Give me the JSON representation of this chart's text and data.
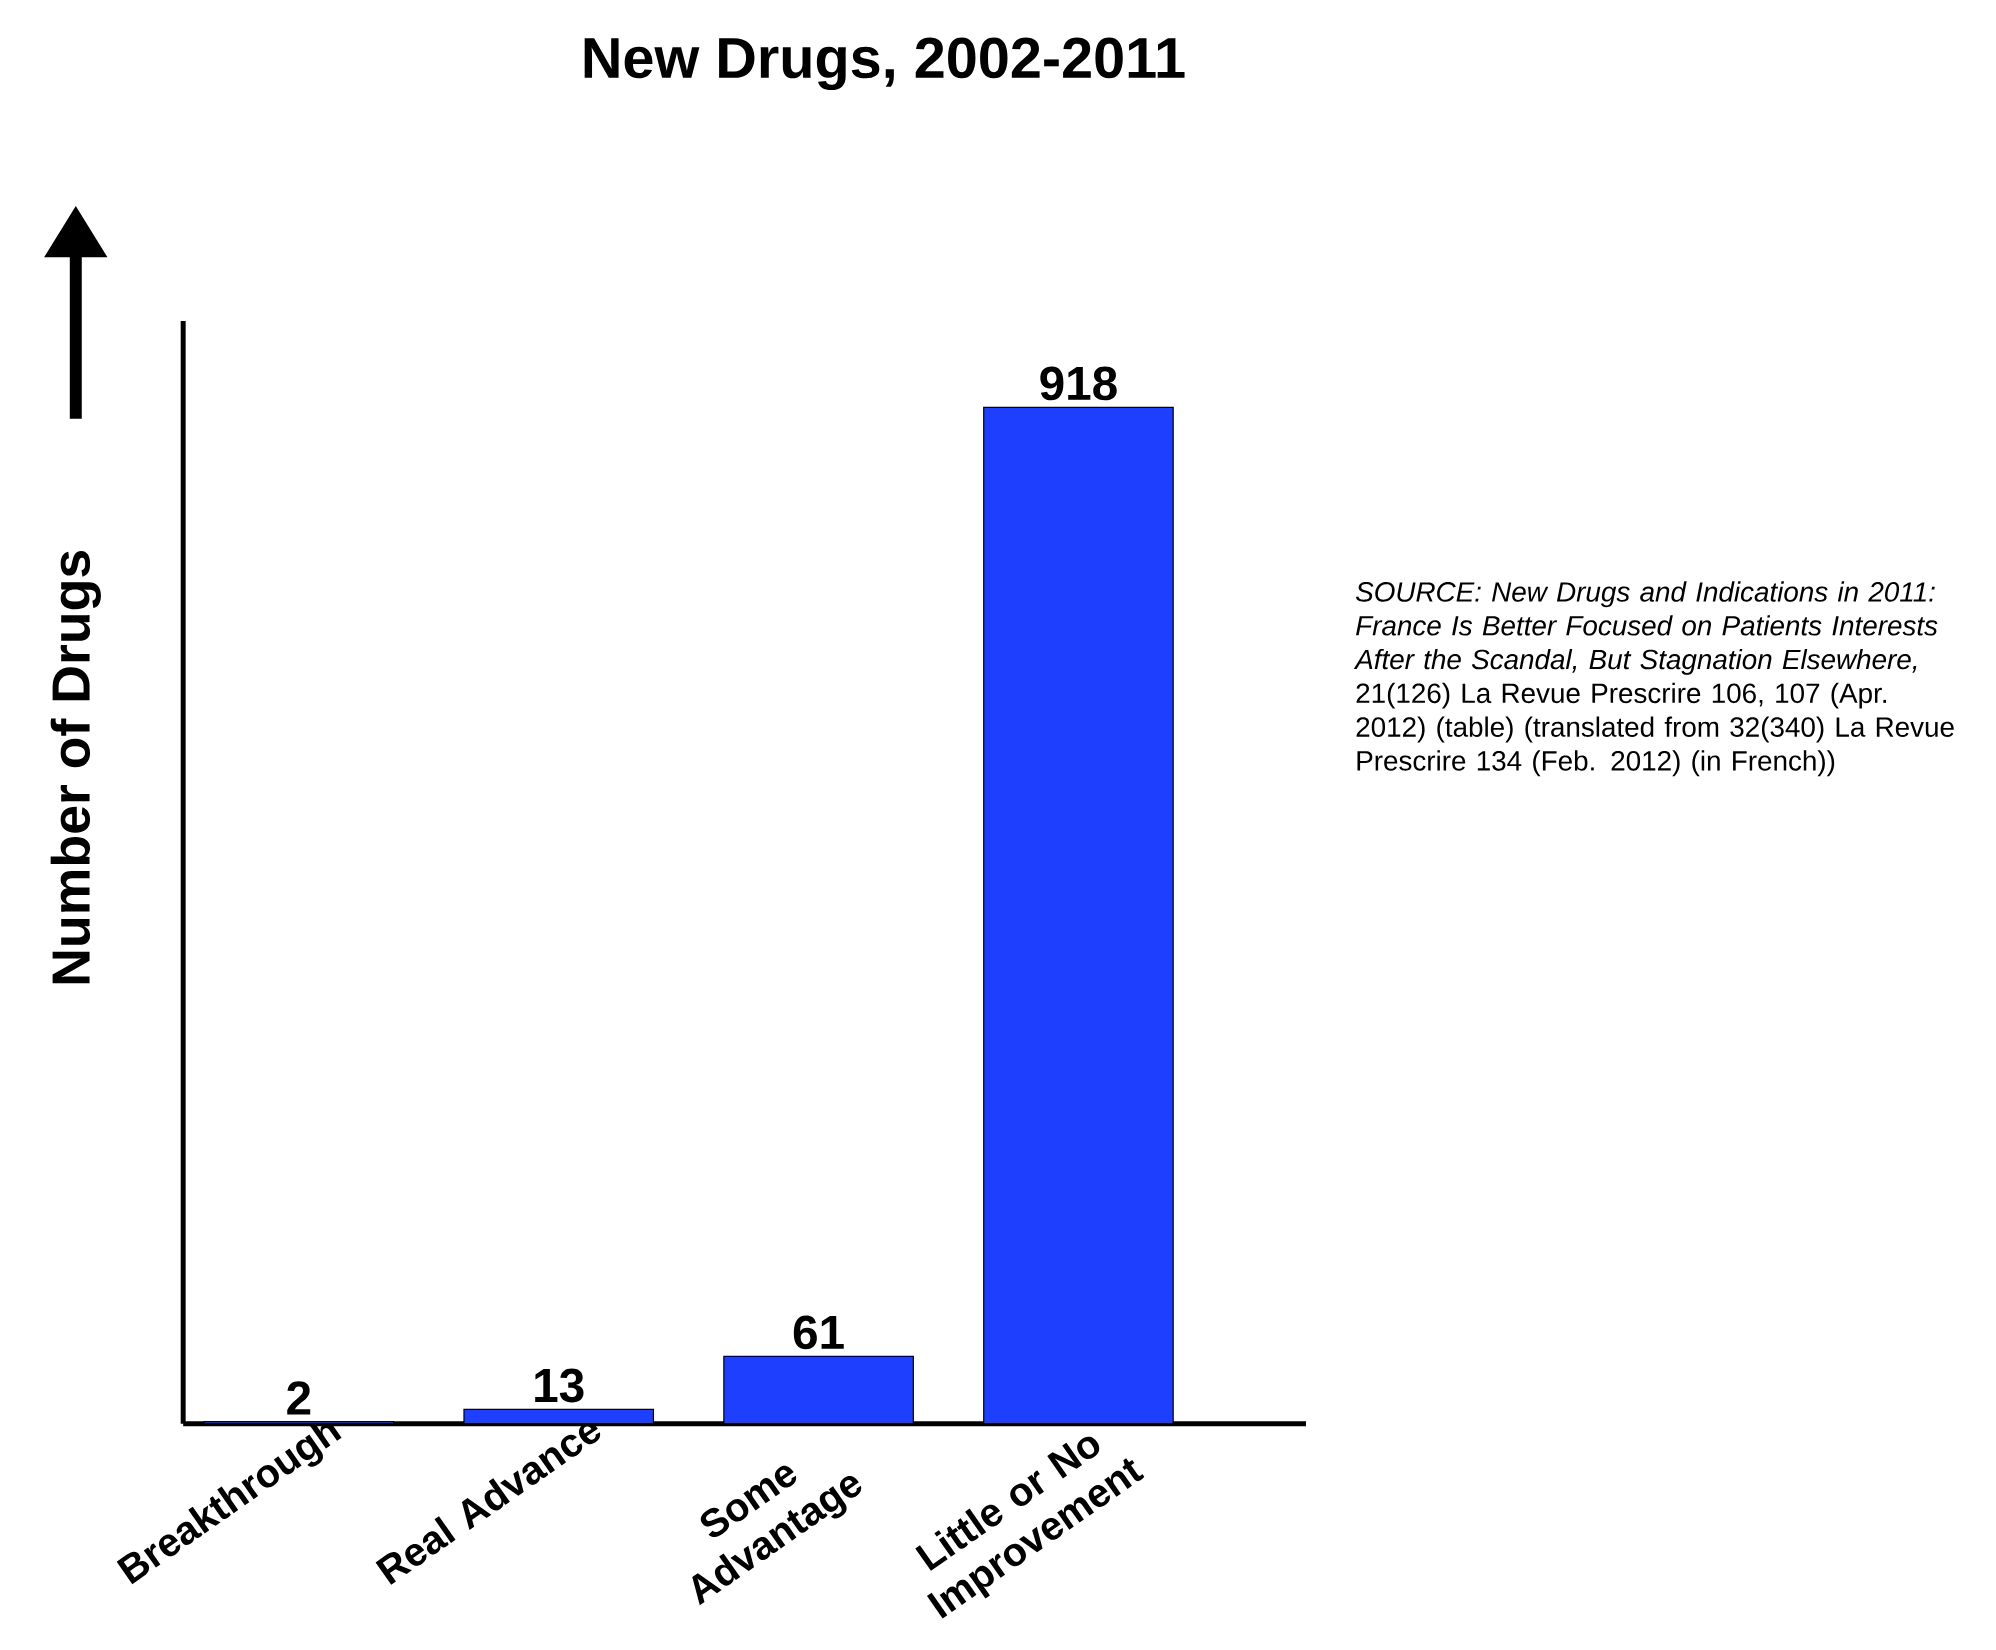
{
  "chart_data": {
    "type": "bar",
    "title": "New Drugs, 2002-2011",
    "ylabel": "Number of Drugs",
    "categories": [
      "Breakthrough",
      "Real Advance",
      "Some Advantage",
      "Little or No Improvement"
    ],
    "values": [
      2,
      13,
      61,
      918
    ],
    "color": "#1f3fff",
    "data_labels": true,
    "annotations": [
      "*SOURCE: New Drugs and Indications in 2011: France Is Better Focused on Patients Interests After the Scandal, But Stagnation Elsewhere,* 21(126) La Revue Prescrire 106, 107 (Apr. 2012) (table) (translated from 32(340) La Revue Prescrire 134 (Feb. 2012) (in French))"
    ]
  }
}
